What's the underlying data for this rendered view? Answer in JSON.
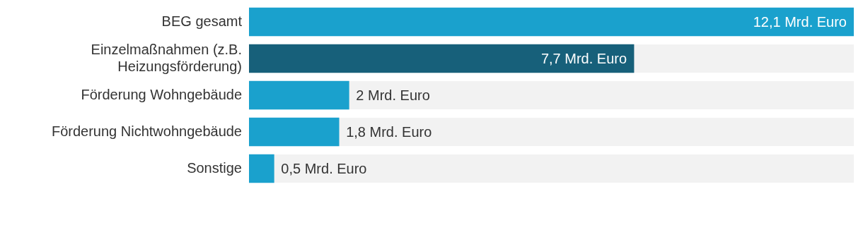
{
  "chart_data": {
    "type": "bar",
    "orientation": "horizontal",
    "categories": [
      "BEG gesamt",
      "Einzelmaßnahmen (z.B. Heizungsförderung)",
      "Förderung Wohngebäude",
      "Förderung Nichtwohngebäude",
      "Sonstige"
    ],
    "values": [
      12.1,
      7.7,
      2,
      1.8,
      0.5
    ],
    "colors": [
      "#1aa1cd",
      "#17607a",
      "#1aa1cd",
      "#1aa1cd",
      "#1aa1cd"
    ],
    "value_labels": [
      "12,1 Mrd. Euro",
      "7,7 Mrd. Euro",
      "2 Mrd. Euro",
      "1,8 Mrd. Euro",
      "0,5 Mrd. Euro"
    ],
    "tick_labels": "y"
  }
}
